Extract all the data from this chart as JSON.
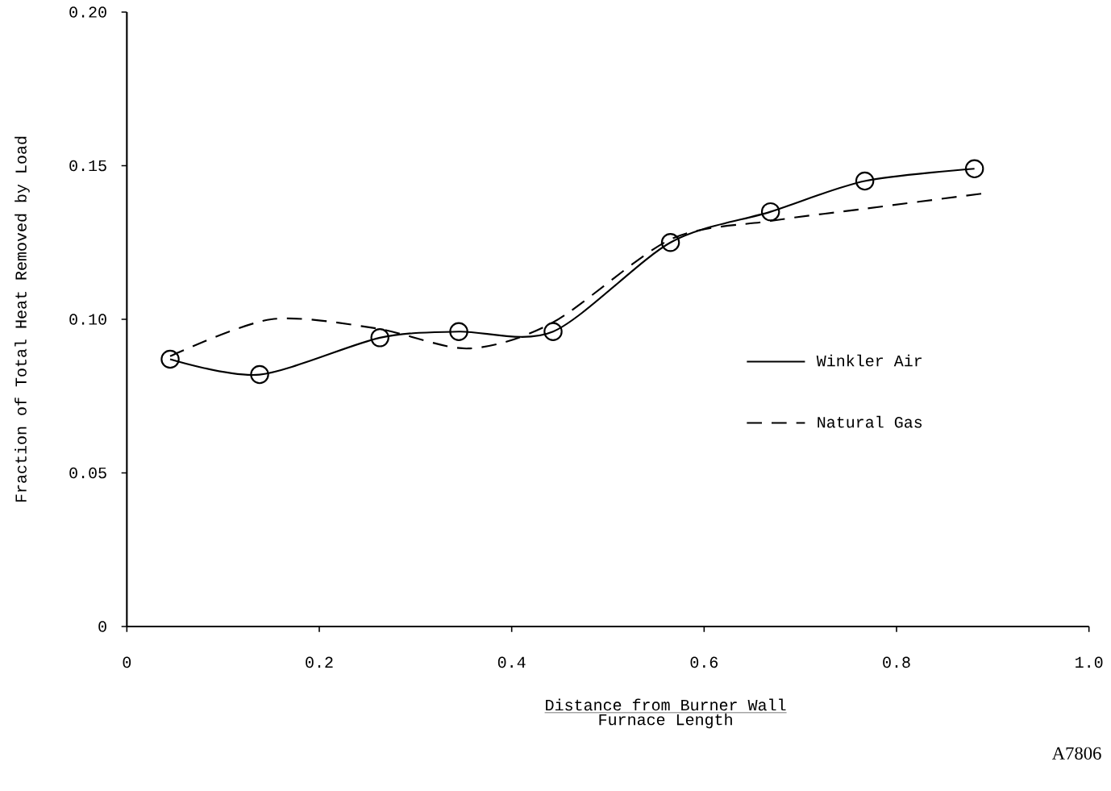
{
  "chart_data": {
    "type": "line",
    "xlabel": "\\frac{\\texttt{Distance from Burner Wall}}{\\texttt{Furnace Length}}",
    "ylabel": "Fraction of Total Heat Removed by Load",
    "xlim": [
      0,
      1.0
    ],
    "ylim": [
      0,
      0.2
    ],
    "xticks": [
      0,
      0.2,
      0.4,
      0.6,
      0.8,
      {
        "value": 1.0,
        "label": "1.0"
      }
    ],
    "yticks": [
      0,
      0.05,
      {
        "value": 0.1,
        "label": "0.10"
      },
      0.15,
      {
        "value": 0.2,
        "label": "0.20"
      }
    ],
    "grid": false,
    "legend": "right",
    "annotations": [
      "A7806"
    ],
    "series": [
      {
        "name": "Winkler Air",
        "color": "#000000",
        "marker": "circle",
        "line_style": "solid",
        "x": [
          0.045,
          0.138,
          0.263,
          0.345,
          0.443,
          0.565,
          0.669,
          0.767,
          0.881
        ],
        "values": [
          0.087,
          0.082,
          0.094,
          0.096,
          0.096,
          0.125,
          0.135,
          0.145,
          0.149
        ]
      },
      {
        "name": "Natural Gas",
        "color": "#000000",
        "marker": "none",
        "line_style": "dashed",
        "x": [
          0.045,
          0.15,
          0.26,
          0.355,
          0.443,
          0.565,
          0.669,
          0.767,
          0.891
        ],
        "values": [
          0.088,
          0.1,
          0.097,
          0.0905,
          0.099,
          0.126,
          0.132,
          0.136,
          0.141
        ]
      }
    ]
  }
}
